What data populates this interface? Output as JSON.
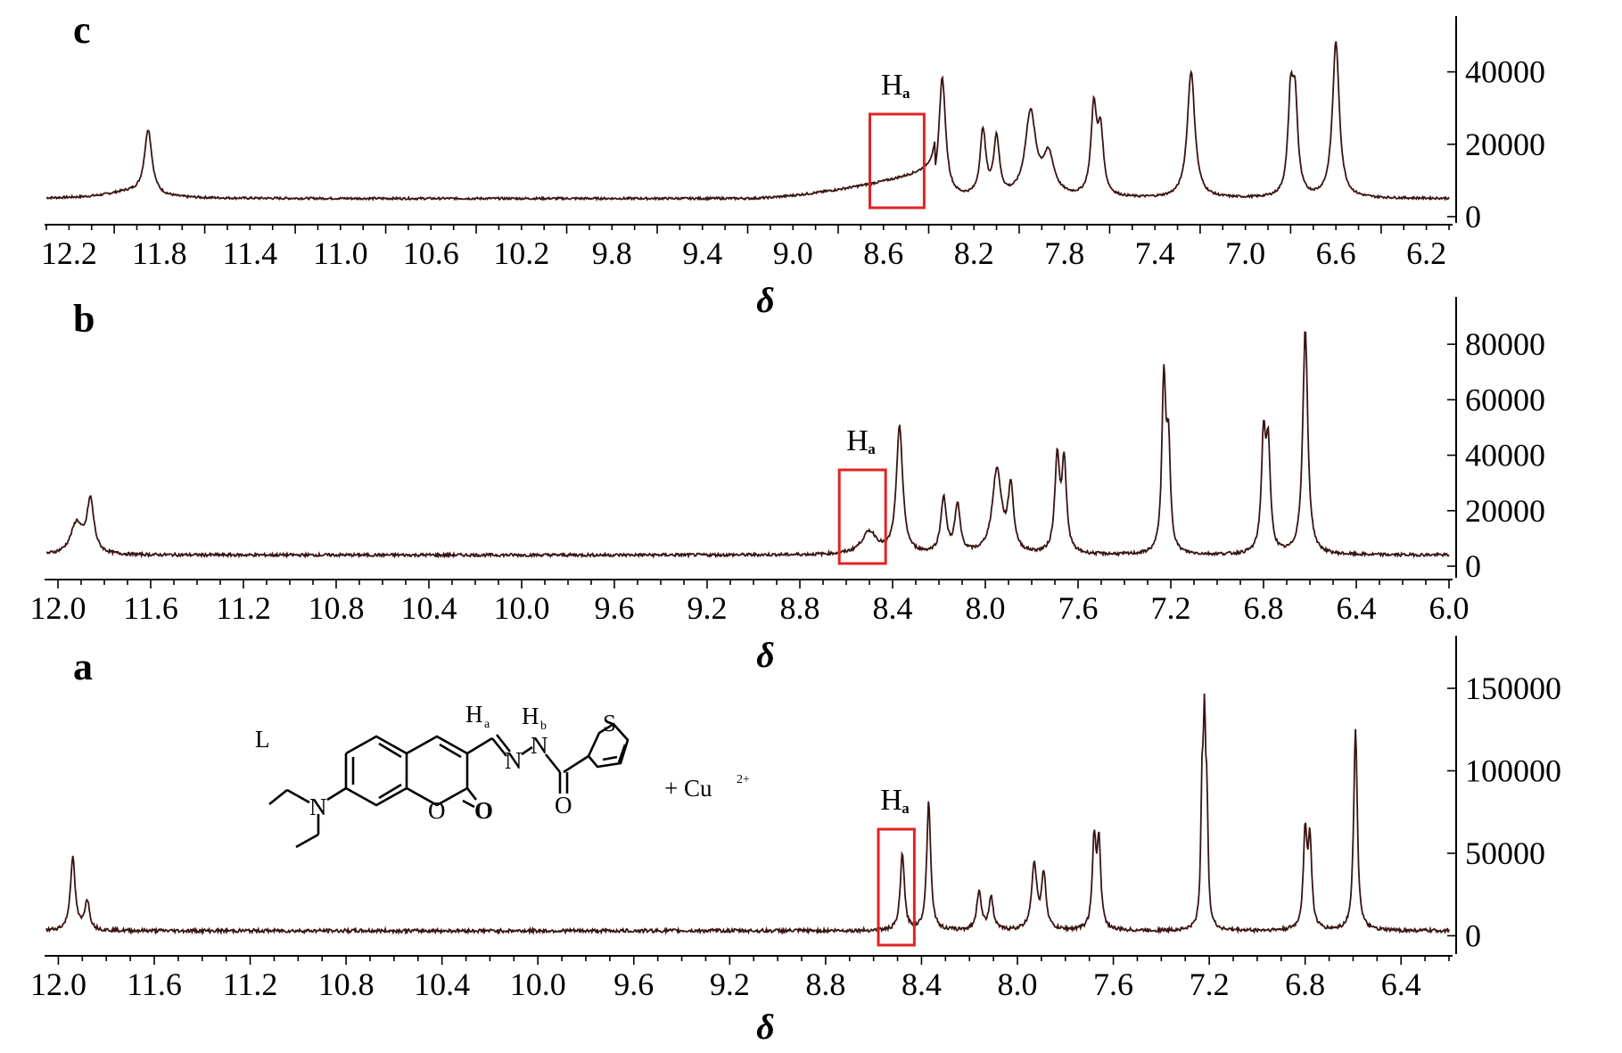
{
  "chart_data": [
    {
      "panel": "c",
      "type": "line",
      "xlabel": "δ",
      "xlim": [
        12.3,
        6.1
      ],
      "x_reversed": true,
      "x_ticks": [
        "12.2",
        "11.8",
        "11.4",
        "11.0",
        "10.6",
        "10.2",
        "9.8",
        "9.4",
        "9.0",
        "8.6",
        "8.2",
        "7.8",
        "7.4",
        "7.0",
        "6.6",
        "6.2"
      ],
      "ylim": [
        0,
        50000
      ],
      "y_ticks": [
        "0",
        "20000",
        "40000"
      ],
      "baseline": 5000,
      "peaks": [
        {
          "x": 11.94,
          "y": 1800,
          "w": 0.12
        },
        {
          "x": 11.85,
          "y": 18000,
          "w": 0.02
        },
        {
          "x": 8.34,
          "y": 33000,
          "w": 0.018
        },
        {
          "x": 8.16,
          "y": 18000,
          "w": 0.015
        },
        {
          "x": 8.1,
          "y": 16000,
          "w": 0.015
        },
        {
          "x": 7.95,
          "y": 23000,
          "w": 0.028
        },
        {
          "x": 7.87,
          "y": 11000,
          "w": 0.03
        },
        {
          "x": 7.67,
          "y": 24000,
          "w": 0.015
        },
        {
          "x": 7.64,
          "y": 17000,
          "w": 0.015
        },
        {
          "x": 7.24,
          "y": 35000,
          "w": 0.02
        },
        {
          "x": 6.8,
          "y": 26000,
          "w": 0.014
        },
        {
          "x": 6.78,
          "y": 24000,
          "w": 0.014
        },
        {
          "x": 6.6,
          "y": 43000,
          "w": 0.018
        }
      ],
      "ramp": {
        "from": 9.2,
        "to": 8.42,
        "rise": 7000
      },
      "annotation": {
        "label": "H",
        "sub": "a",
        "box_x": [
          8.66,
          8.42
        ]
      }
    },
    {
      "panel": "b",
      "type": "line",
      "xlabel": "δ",
      "xlim": [
        12.05,
        6.0
      ],
      "x_reversed": true,
      "x_ticks": [
        "12.0",
        "11.6",
        "11.2",
        "10.8",
        "10.4",
        "10.0",
        "9.6",
        "9.2",
        "8.8",
        "8.4",
        "8.0",
        "7.6",
        "7.2",
        "6.8",
        "6.4",
        "6.0"
      ],
      "ylim": [
        0,
        90000
      ],
      "y_ticks": [
        "0",
        "20000",
        "40000",
        "60000",
        "80000"
      ],
      "baseline": 4000,
      "peaks": [
        {
          "x": 11.92,
          "y": 11000,
          "w": 0.03
        },
        {
          "x": 11.86,
          "y": 19000,
          "w": 0.018
        },
        {
          "x": 8.5,
          "y": 8000,
          "w": 0.04
        },
        {
          "x": 8.37,
          "y": 46000,
          "w": 0.016
        },
        {
          "x": 8.18,
          "y": 20000,
          "w": 0.014
        },
        {
          "x": 8.12,
          "y": 17000,
          "w": 0.014
        },
        {
          "x": 7.95,
          "y": 30000,
          "w": 0.024
        },
        {
          "x": 7.89,
          "y": 23000,
          "w": 0.014
        },
        {
          "x": 7.69,
          "y": 34000,
          "w": 0.012
        },
        {
          "x": 7.66,
          "y": 32000,
          "w": 0.012
        },
        {
          "x": 7.23,
          "y": 62000,
          "w": 0.01
        },
        {
          "x": 7.21,
          "y": 36000,
          "w": 0.01
        },
        {
          "x": 6.8,
          "y": 40000,
          "w": 0.011
        },
        {
          "x": 6.78,
          "y": 36000,
          "w": 0.011
        },
        {
          "x": 6.62,
          "y": 81000,
          "w": 0.013
        }
      ],
      "annotation": {
        "label": "H",
        "sub": "a",
        "box_x": [
          8.63,
          8.43
        ]
      }
    },
    {
      "panel": "a",
      "type": "line",
      "xlabel": "δ",
      "xlim": [
        12.05,
        6.2
      ],
      "x_reversed": true,
      "x_ticks": [
        "12.0",
        "11.6",
        "11.2",
        "10.8",
        "10.4",
        "10.0",
        "9.6",
        "9.2",
        "8.8",
        "8.4",
        "8.0",
        "7.6",
        "7.2",
        "6.8",
        "6.4"
      ],
      "ylim": [
        -10000,
        170000
      ],
      "y_ticks": [
        "0",
        "50000",
        "100000",
        "150000"
      ],
      "baseline": 3000,
      "peaks": [
        {
          "x": 11.94,
          "y": 44000,
          "w": 0.012
        },
        {
          "x": 11.88,
          "y": 18000,
          "w": 0.012
        },
        {
          "x": 8.48,
          "y": 47000,
          "w": 0.01
        },
        {
          "x": 8.37,
          "y": 78000,
          "w": 0.01
        },
        {
          "x": 8.16,
          "y": 24000,
          "w": 0.011
        },
        {
          "x": 8.11,
          "y": 20000,
          "w": 0.011
        },
        {
          "x": 7.93,
          "y": 40000,
          "w": 0.013
        },
        {
          "x": 7.89,
          "y": 33000,
          "w": 0.011
        },
        {
          "x": 7.68,
          "y": 53000,
          "w": 0.009
        },
        {
          "x": 7.66,
          "y": 52000,
          "w": 0.009
        },
        {
          "x": 7.23,
          "y": 75000,
          "w": 0.006
        },
        {
          "x": 7.22,
          "y": 106000,
          "w": 0.006
        },
        {
          "x": 7.21,
          "y": 65000,
          "w": 0.006
        },
        {
          "x": 6.8,
          "y": 58000,
          "w": 0.009
        },
        {
          "x": 6.78,
          "y": 52000,
          "w": 0.009
        },
        {
          "x": 6.59,
          "y": 123000,
          "w": 0.009
        }
      ],
      "annotation": {
        "label": "H",
        "sub": "a",
        "box_x": [
          8.58,
          8.43
        ]
      }
    }
  ],
  "colors": {
    "spectrum": "#3a1414",
    "highlight_box": "#e02424"
  },
  "structure": {
    "compound_label": "L",
    "atoms": {
      "N_amine": "N",
      "O_ring": "O",
      "O_carbonyl": "O",
      "N_imine": "N",
      "N_amide": "N",
      "O_amide": "O",
      "S": "S",
      "Ha": "H",
      "Ha_sub": "a",
      "Hb": "H",
      "Hb_sub": "b"
    },
    "additive": "+ Cu",
    "additive_charge": "2+"
  }
}
